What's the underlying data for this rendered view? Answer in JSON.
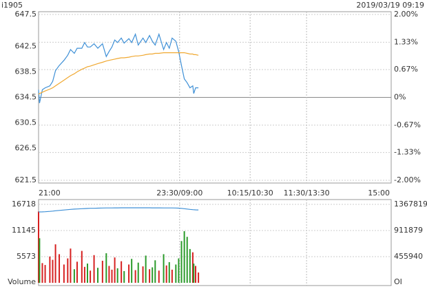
{
  "chart_data": [
    {
      "type": "line",
      "title": "i1905",
      "subtitle": "2019/03/19 09:19",
      "x": [
        0,
        1,
        4,
        7,
        12,
        15,
        18,
        22,
        27,
        31,
        34,
        38,
        41,
        46,
        49,
        52,
        55,
        59,
        63,
        68,
        72,
        75,
        78,
        81,
        84,
        88,
        91,
        96,
        99,
        103,
        106,
        111,
        114,
        118,
        121,
        124,
        128,
        133,
        136,
        139,
        142,
        146,
        149,
        152,
        155,
        158,
        161,
        164,
        165,
        167,
        170
      ],
      "xlim": [
        0,
        375
      ],
      "xticks": [
        {
          "value": 0,
          "label": "21:00"
        },
        {
          "value": 150,
          "label": "23:30/09:00"
        },
        {
          "value": 225,
          "label": "10:15/10:30"
        },
        {
          "value": 285,
          "label": "11:30/13:30"
        },
        {
          "value": 375,
          "label": "15:00"
        }
      ],
      "ylim": [
        621.5,
        647.5
      ],
      "yticks": [
        647.5,
        642.5,
        638.5,
        634.5,
        630.5,
        626.5,
        621.5
      ],
      "y2lim": [
        -2,
        2
      ],
      "y2ticks": [
        {
          "value": 2,
          "label": "2.00%"
        },
        {
          "value": 1.33,
          "label": "1.33%"
        },
        {
          "value": 0.67,
          "label": "0.67%"
        },
        {
          "value": 0,
          "label": "0%"
        },
        {
          "value": -0.67,
          "label": "-0.67%"
        },
        {
          "value": -1.33,
          "label": "-1.33%"
        },
        {
          "value": -2,
          "label": "-2.00%"
        }
      ],
      "grid": true,
      "series": [
        {
          "color": "#3d8fd6",
          "values": [
            635.7,
            633.6,
            635.7,
            636.0,
            636.3,
            637.0,
            638.7,
            639.5,
            640.3,
            641.1,
            642.0,
            641.4,
            642.2,
            642.2,
            643.1,
            642.4,
            642.4,
            642.9,
            642.2,
            642.9,
            640.9,
            641.7,
            642.4,
            643.5,
            643.1,
            643.8,
            643.0,
            643.7,
            643.1,
            644.4,
            642.7,
            643.8,
            643.1,
            644.2,
            643.3,
            642.7,
            644.4,
            642.0,
            643.1,
            642.2,
            643.8,
            643.3,
            641.7,
            639.5,
            637.4,
            636.8,
            636.0,
            636.3,
            635.1,
            636.0,
            636.0
          ]
        },
        {
          "color": "#f0a830",
          "values": [
            635.0,
            635.1,
            635.3,
            635.5,
            635.8,
            636.0,
            636.3,
            636.7,
            637.2,
            637.6,
            637.9,
            638.2,
            638.5,
            638.9,
            639.1,
            639.3,
            639.4,
            639.6,
            639.8,
            640.0,
            640.2,
            640.3,
            640.4,
            640.5,
            640.6,
            640.7,
            640.7,
            640.8,
            640.9,
            641.0,
            641.0,
            641.1,
            641.2,
            641.3,
            641.3,
            641.4,
            641.4,
            641.5,
            641.5,
            641.5,
            641.5,
            641.5,
            641.5,
            641.5,
            641.5,
            641.4,
            641.3,
            641.3,
            641.2,
            641.2,
            641.1
          ]
        }
      ]
    },
    {
      "type": "bar",
      "y_label": "Volume",
      "y2_label": "OI",
      "x": [
        0,
        1,
        4,
        7,
        12,
        15,
        18,
        22,
        27,
        31,
        34,
        38,
        41,
        46,
        49,
        52,
        55,
        59,
        63,
        68,
        72,
        75,
        78,
        81,
        84,
        88,
        91,
        96,
        99,
        103,
        106,
        111,
        114,
        118,
        121,
        124,
        128,
        133,
        136,
        139,
        142,
        146,
        149,
        152,
        155,
        158,
        161,
        164,
        165,
        167,
        170
      ],
      "xlim": [
        0,
        375
      ],
      "ylim": [
        0,
        16718
      ],
      "yticks": [
        5573,
        11145,
        16718
      ],
      "y2lim": [
        0,
        1367819
      ],
      "y2ticks": [
        455940,
        911879,
        1367819
      ],
      "up_color": "#d62020",
      "down_color": "#2a9a2a",
      "series": [
        {
          "values": [
            15200,
            9500,
            4200,
            3800,
            5600,
            4900,
            8200,
            6100,
            3900,
            5200,
            7300,
            2900,
            4500,
            6800,
            3400,
            4100,
            2600,
            5900,
            3200,
            4700,
            6300,
            3600,
            2800,
            5400,
            3100,
            4600,
            2500,
            3900,
            5100,
            2700,
            4300,
            3500,
            5800,
            2900,
            3300,
            4800,
            2600,
            6100,
            3700,
            4400,
            2800,
            3900,
            5200,
            8900,
            11000,
            9800,
            7200,
            6500,
            4100,
            3600,
            2200
          ]
        },
        {
          "color": "#3d8fd6",
          "axis": "y2",
          "values": [
            1236000,
            1236000,
            1237000,
            1240000,
            1245000,
            1250000,
            1256000,
            1262000,
            1270000,
            1276000,
            1280000,
            1285000,
            1288000,
            1292000,
            1295000,
            1297000,
            1299000,
            1300000,
            1302000,
            1304000,
            1305000,
            1306000,
            1306000,
            1307000,
            1307000,
            1308000,
            1308000,
            1308000,
            1308000,
            1308000,
            1308000,
            1308000,
            1308000,
            1308000,
            1307000,
            1307000,
            1307000,
            1306000,
            1306000,
            1305000,
            1305000,
            1304000,
            1302000,
            1298000,
            1292000,
            1286000,
            1280000,
            1276000,
            1274000,
            1272000,
            1271000
          ]
        }
      ]
    }
  ]
}
